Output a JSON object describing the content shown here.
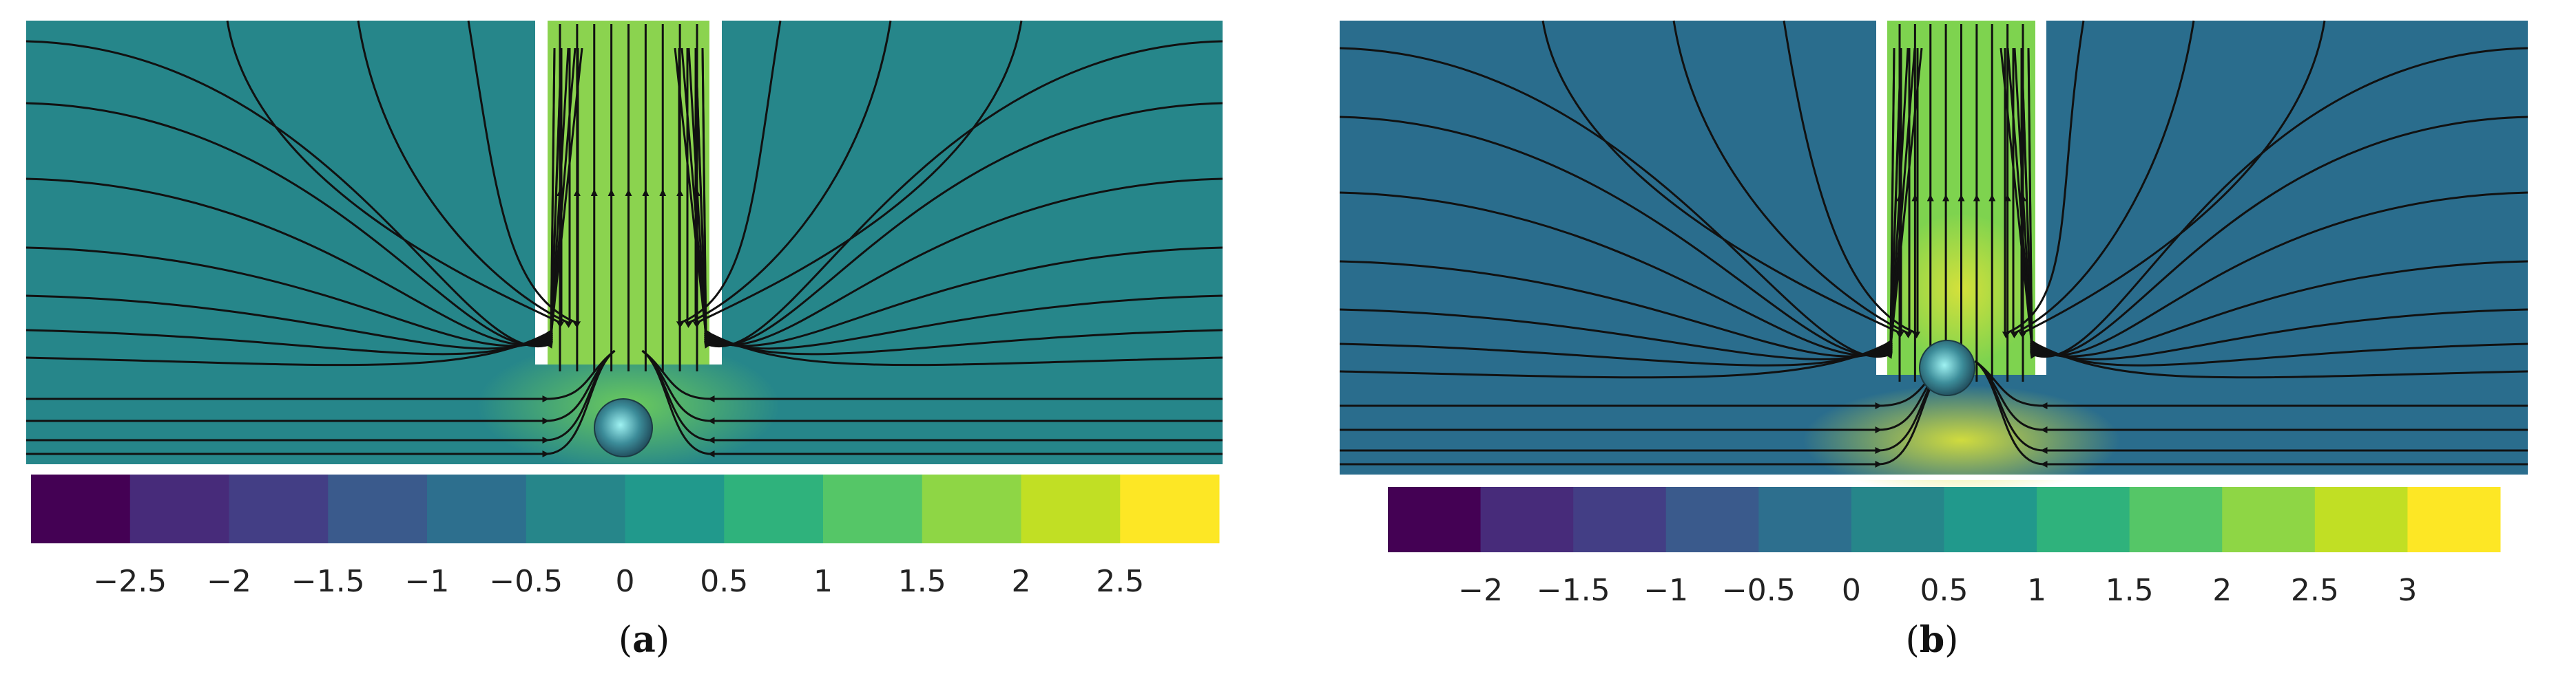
{
  "panels": [
    {
      "id": "a",
      "caption_prefix": "(",
      "caption_letter": "a",
      "caption_suffix": ")",
      "background": "#26868a",
      "channel_color": "#8bd34f",
      "hotspot_color": "#6fce5a",
      "colorbar": {
        "colors": [
          "#440154",
          "#472b7a",
          "#433e85",
          "#3a5a8c",
          "#2d6f8e",
          "#26868a",
          "#21998c",
          "#2fb27c",
          "#55c667",
          "#8ed645",
          "#c1df24",
          "#fde725"
        ],
        "labels": [
          "−2.5",
          "−2",
          "−1.5",
          "−1",
          "−0.5",
          "0",
          "0.5",
          "1",
          "1.5",
          "2",
          "2.5"
        ]
      }
    },
    {
      "id": "b",
      "caption_prefix": "(",
      "caption_letter": "b",
      "caption_suffix": ")",
      "background": "#2a6d8d",
      "channel_color": "#7ed34f",
      "hotspot_color": "#d9e13a",
      "colorbar": {
        "colors": [
          "#440154",
          "#472b7a",
          "#433e85",
          "#3a5a8c",
          "#2d6f8e",
          "#26868a",
          "#21998c",
          "#2fb27c",
          "#55c667",
          "#8ed645",
          "#c1df24",
          "#fde725"
        ],
        "labels": [
          "−2",
          "−1.5",
          "−1",
          "−0.5",
          "0",
          "0.5",
          "1",
          "1.5",
          "2",
          "2.5",
          "3"
        ]
      }
    }
  ]
}
